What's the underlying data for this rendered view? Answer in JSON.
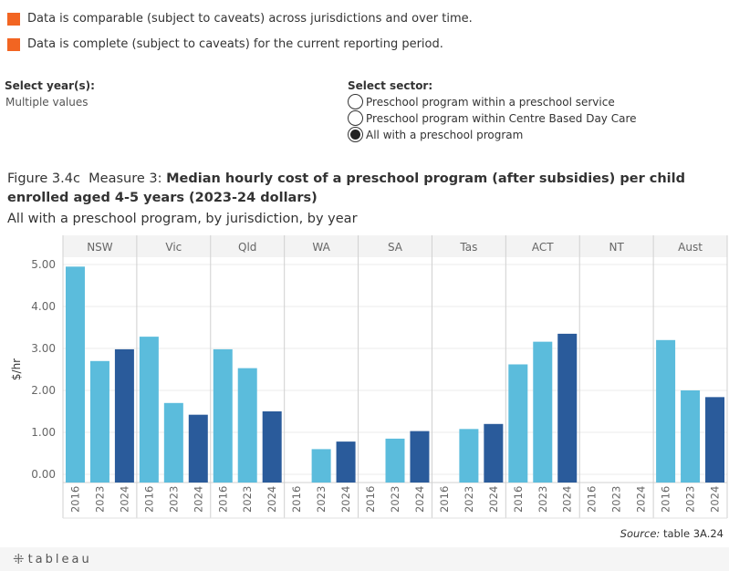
{
  "legend": [
    {
      "label": "Data is comparable (subject to caveats) across jurisdictions and over time.",
      "color": "#f26522"
    },
    {
      "label": "Data is complete (subject to caveats) for the current reporting period.",
      "color": "#f26522"
    }
  ],
  "filters": {
    "year": {
      "title": "Select year(s):",
      "value": "Multiple values"
    },
    "sector": {
      "title": "Select sector:",
      "options": [
        {
          "label": "Preschool program within a preschool service",
          "selected": false
        },
        {
          "label": "Preschool program within Centre Based Day Care",
          "selected": false
        },
        {
          "label": "All with a preschool program",
          "selected": true
        }
      ]
    }
  },
  "figure": {
    "number": "Figure 3.4c",
    "measure": "Measure 3:",
    "title": "Median hourly cost of a preschool program (after subsidies) per child enrolled aged 4-5 years (2023-24 dollars)",
    "subtitle": "All with a preschool program, by jurisdiction, by year"
  },
  "chart_data": {
    "type": "bar",
    "ylabel": "$/hr",
    "ylim": [
      0,
      5.2
    ],
    "yticks": [
      "0.00",
      "1.00",
      "2.00",
      "3.00",
      "4.00",
      "5.00"
    ],
    "years": [
      "2016",
      "2023",
      "2024"
    ],
    "year_colors": [
      "#5bbcdc",
      "#5bbcdc",
      "#2a5b9b"
    ],
    "groups": [
      {
        "name": "NSW",
        "values": [
          4.95,
          2.7,
          2.98
        ]
      },
      {
        "name": "Vic",
        "values": [
          3.28,
          1.7,
          1.42
        ]
      },
      {
        "name": "Qld",
        "values": [
          2.98,
          2.53,
          1.5
        ]
      },
      {
        "name": "WA",
        "values": [
          null,
          0.6,
          0.78
        ]
      },
      {
        "name": "SA",
        "values": [
          null,
          0.85,
          1.03
        ]
      },
      {
        "name": "Tas",
        "values": [
          null,
          1.08,
          1.2
        ]
      },
      {
        "name": "ACT",
        "values": [
          2.62,
          3.16,
          3.35
        ]
      },
      {
        "name": "NT",
        "values": [
          null,
          null,
          null
        ]
      },
      {
        "name": "Aust",
        "values": [
          3.2,
          2.0,
          1.84
        ]
      }
    ],
    "grid": true
  },
  "source": {
    "label": "Source:",
    "value": "table 3A.24"
  },
  "footer": {
    "logo": "tableau"
  }
}
